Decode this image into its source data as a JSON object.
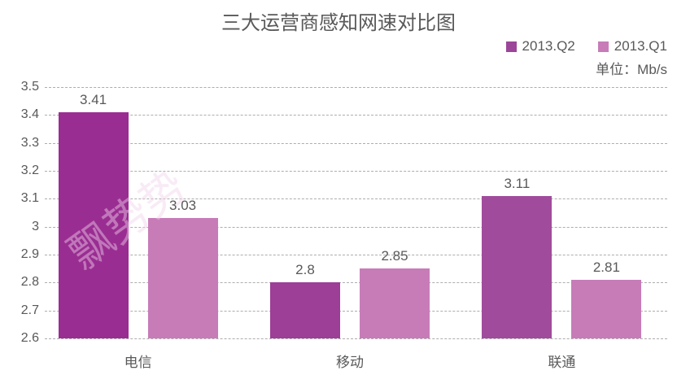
{
  "title": "三大运营商感知网速对比图",
  "legend": {
    "items": [
      {
        "label": "2013.Q2",
        "color": "#9C4699"
      },
      {
        "label": "2013.Q1",
        "color": "#C77CB8"
      }
    ],
    "unit_label": "单位：Mb/s"
  },
  "watermark": "飘势势",
  "colors": {
    "text": "#595959",
    "gridline": "#adadad",
    "series_q2": "#9A2D92",
    "series_q1": "#C77CB8"
  },
  "chart_data": {
    "type": "bar",
    "title": "三大运营商感知网速对比图",
    "categories": [
      "电信",
      "移动",
      "联通"
    ],
    "series": [
      {
        "name": "2013.Q2",
        "values": [
          3.41,
          2.8,
          3.11
        ],
        "color": "#9A2D92",
        "bar_colors": [
          "#9A2D92",
          "#9D3E97",
          "#A14B9D"
        ]
      },
      {
        "name": "2013.Q1",
        "values": [
          3.03,
          2.85,
          2.81
        ],
        "color": "#C77CB8",
        "bar_colors": [
          "#C77CB8",
          "#C77CB8",
          "#C77CB8"
        ]
      }
    ],
    "value_labels": [
      [
        "3.41",
        "2.8",
        "3.11"
      ],
      [
        "3.03",
        "2.85",
        "2.81"
      ]
    ],
    "ylim": [
      2.6,
      3.5
    ],
    "ytick_step": 0.1,
    "ytick_labels": [
      "3.5",
      "3.4",
      "3.3",
      "3.2",
      "3.1",
      "3",
      "2.9",
      "2.8",
      "2.7",
      "2.6"
    ],
    "unit": "Mb/s",
    "grid": "dashed-horizontal",
    "legend_position": "top-right"
  }
}
